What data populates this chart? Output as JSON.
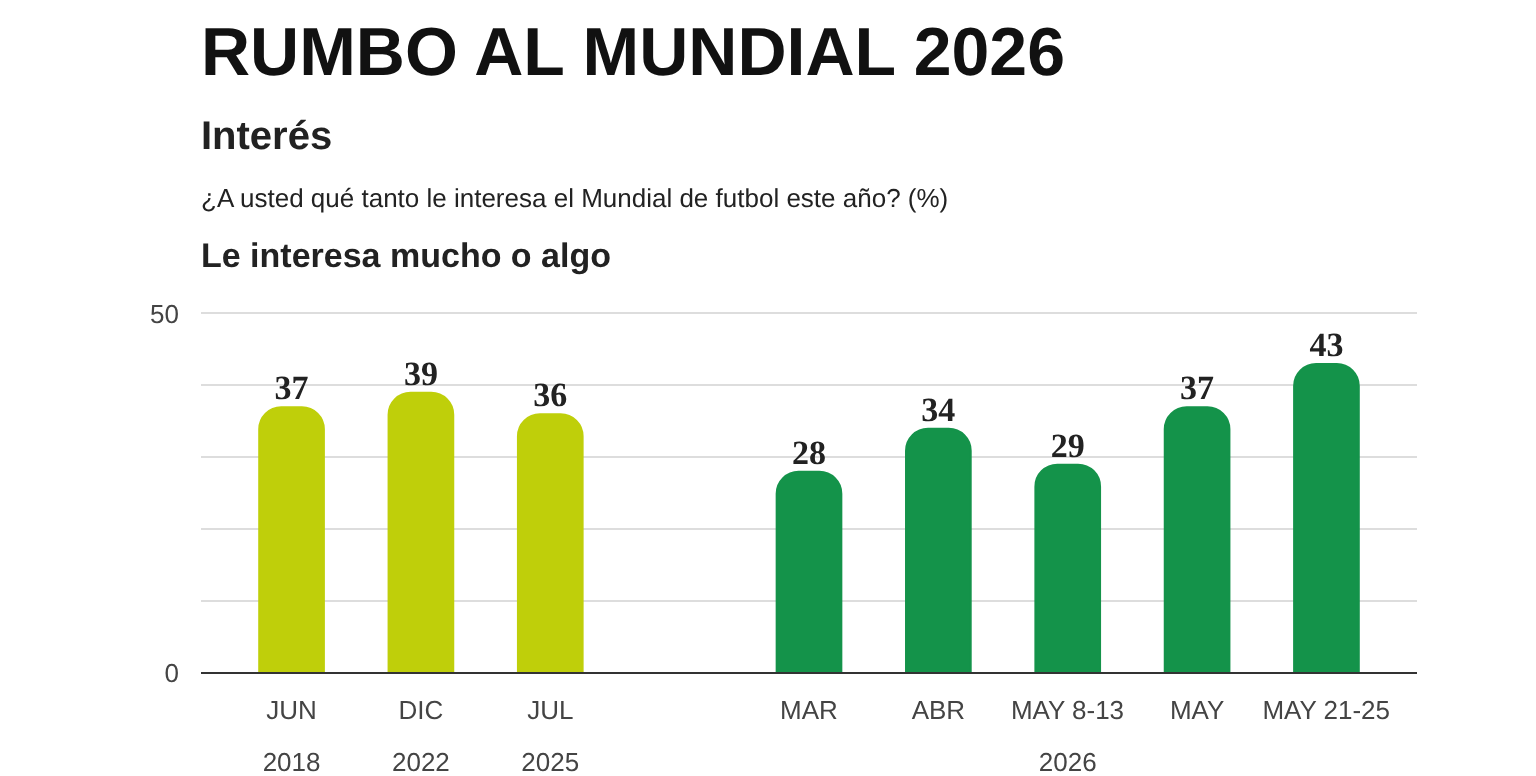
{
  "chart_data": {
    "type": "bar",
    "title": "RUMBO AL MUNDIAL 2026",
    "subtitle": "Interés",
    "categories": [
      "JUN",
      "DIC",
      "JUL",
      null,
      "MAR",
      "ABR",
      "MAY 8-13",
      "MAY",
      "MAY 21-25"
    ],
    "values": [
      37,
      39,
      36,
      null,
      28,
      34,
      29,
      37,
      43
    ],
    "colors": [
      "#bfcf0a",
      "#bfcf0a",
      "#bfcf0a",
      "#ffffff",
      "#14934a",
      "#14934a",
      "#14934a",
      "#14934a",
      "#14934a"
    ],
    "ylim": [
      0,
      50
    ],
    "yticks": [
      0,
      {
        "value": 10,
        "label": null
      },
      {
        "value": 20,
        "label": null
      },
      {
        "value": 30,
        "label": null
      },
      {
        "value": 40,
        "label": null
      },
      50
    ],
    "grid": "y",
    "data_labels": true,
    "annotations": [
      "¿A usted qué tanto le interesa el Mundial de futbol este año? (%)",
      "Le interesa mucho o algo",
      "2018",
      "2022",
      "2025",
      "2026"
    ]
  }
}
